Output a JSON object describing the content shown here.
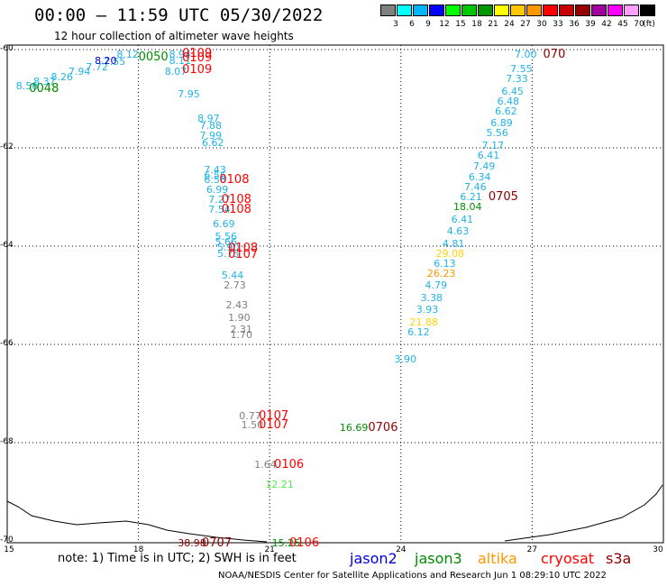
{
  "header": {
    "title": "00:00 – 11:59 UTC 05/30/2022",
    "subtitle": "12 hour collection of altimeter wave heights"
  },
  "legend": {
    "unit": "(ft)",
    "bins": [
      {
        "label": "3",
        "color": "#808080"
      },
      {
        "label": "6",
        "color": "#00ffff"
      },
      {
        "label": "9",
        "color": "#00b4ff"
      },
      {
        "label": "12",
        "color": "#0000ff"
      },
      {
        "label": "15",
        "color": "#00ff00"
      },
      {
        "label": "18",
        "color": "#00c800"
      },
      {
        "label": "21",
        "color": "#009600"
      },
      {
        "label": "24",
        "color": "#ffff00"
      },
      {
        "label": "27",
        "color": "#ffc800"
      },
      {
        "label": "30",
        "color": "#ff9600"
      },
      {
        "label": "33",
        "color": "#ff0000"
      },
      {
        "label": "36",
        "color": "#c80000"
      },
      {
        "label": "39",
        "color": "#960000"
      },
      {
        "label": "42",
        "color": "#a000a0"
      },
      {
        "label": "45",
        "color": "#ff00ff"
      },
      {
        "label": "70",
        "color": "#ffa0ff"
      },
      {
        "label": "",
        "color": "#000000"
      }
    ]
  },
  "axes": {
    "latitudes": [
      {
        "label": "-60",
        "value": -60
      },
      {
        "label": "-62",
        "value": -62
      },
      {
        "label": "-64",
        "value": -64
      },
      {
        "label": "-66",
        "value": -66
      },
      {
        "label": "-68",
        "value": -68
      },
      {
        "label": "-70",
        "value": -70
      }
    ],
    "longitudes": [
      {
        "label": "15",
        "value": 15
      },
      {
        "label": "18",
        "value": 18
      },
      {
        "label": "21",
        "value": 21
      },
      {
        "label": "24",
        "value": 24
      },
      {
        "label": "27",
        "value": 27
      },
      {
        "label": "30",
        "value": 30
      }
    ]
  },
  "colors": {
    "gray": "#808080",
    "cyan": "#1eb4e6",
    "green": "#008c00",
    "lightgreen": "#50e650",
    "yellow": "#ffd200",
    "red": "#ff0000",
    "darkred": "#8c0000",
    "blue": "#0000dc",
    "orange": "#ff9600"
  },
  "wave_heights": [
    {
      "text": "8.56",
      "lon": 15.2,
      "lat": -60.65,
      "color": "cyan"
    },
    {
      "text": "8.37",
      "lon": 15.6,
      "lat": -60.55,
      "color": "cyan"
    },
    {
      "text": "8.26",
      "lon": 16.0,
      "lat": -60.45,
      "color": "cyan"
    },
    {
      "text": "7.94",
      "lon": 16.4,
      "lat": -60.35,
      "color": "cyan"
    },
    {
      "text": "7.72",
      "lon": 16.8,
      "lat": -60.25,
      "color": "cyan"
    },
    {
      "text": "7.55",
      "lon": 17.2,
      "lat": -60.15,
      "color": "cyan"
    },
    {
      "text": "8.20",
      "lon": 17.0,
      "lat": -60.12,
      "color": "blue"
    },
    {
      "text": "8.12",
      "lon": 17.5,
      "lat": -60.0,
      "color": "cyan"
    },
    {
      "text": "8.94",
      "lon": 18.7,
      "lat": -60.0,
      "color": "cyan"
    },
    {
      "text": "8.11",
      "lon": 18.7,
      "lat": -60.12,
      "color": "cyan"
    },
    {
      "text": "8.07",
      "lon": 18.6,
      "lat": -60.35,
      "color": "cyan"
    },
    {
      "text": "7.95",
      "lon": 18.9,
      "lat": -60.8,
      "color": "cyan"
    },
    {
      "text": "8.97",
      "lon": 19.35,
      "lat": -61.3,
      "color": "cyan"
    },
    {
      "text": "7.88",
      "lon": 19.4,
      "lat": -61.45,
      "color": "cyan"
    },
    {
      "text": "7.99",
      "lon": 19.4,
      "lat": -61.65,
      "color": "cyan"
    },
    {
      "text": "6.62",
      "lon": 19.45,
      "lat": -61.8,
      "color": "cyan"
    },
    {
      "text": "7.43",
      "lon": 19.5,
      "lat": -62.35,
      "color": "cyan"
    },
    {
      "text": "6.56",
      "lon": 19.5,
      "lat": -62.45,
      "color": "cyan"
    },
    {
      "text": "6.58",
      "lon": 19.5,
      "lat": -62.55,
      "color": "cyan"
    },
    {
      "text": "6.99",
      "lon": 19.55,
      "lat": -62.75,
      "color": "cyan"
    },
    {
      "text": "7.27",
      "lon": 19.6,
      "lat": -62.95,
      "color": "cyan"
    },
    {
      "text": "7.54",
      "lon": 19.6,
      "lat": -63.15,
      "color": "cyan"
    },
    {
      "text": "6.69",
      "lon": 19.7,
      "lat": -63.45,
      "color": "cyan"
    },
    {
      "text": "5.56",
      "lon": 19.75,
      "lat": -63.7,
      "color": "cyan"
    },
    {
      "text": "5.66",
      "lon": 19.75,
      "lat": -63.82,
      "color": "cyan"
    },
    {
      "text": "5.90",
      "lon": 19.8,
      "lat": -63.92,
      "color": "cyan"
    },
    {
      "text": "5.75",
      "lon": 19.8,
      "lat": -64.05,
      "color": "cyan"
    },
    {
      "text": "5.44",
      "lon": 19.9,
      "lat": -64.5,
      "color": "cyan"
    },
    {
      "text": "2.73",
      "lon": 19.95,
      "lat": -64.7,
      "color": "gray"
    },
    {
      "text": "2.43",
      "lon": 20.0,
      "lat": -65.1,
      "color": "gray"
    },
    {
      "text": "1.90",
      "lon": 20.05,
      "lat": -65.35,
      "color": "gray"
    },
    {
      "text": "2.31",
      "lon": 20.1,
      "lat": -65.6,
      "color": "gray"
    },
    {
      "text": "1.70",
      "lon": 20.1,
      "lat": -65.7,
      "color": "gray"
    },
    {
      "text": "0.77",
      "lon": 20.3,
      "lat": -67.35,
      "color": "gray"
    },
    {
      "text": "1.50",
      "lon": 20.35,
      "lat": -67.55,
      "color": "gray"
    },
    {
      "text": "1.64",
      "lon": 20.65,
      "lat": -68.35,
      "color": "gray"
    },
    {
      "text": "12.21",
      "lon": 20.9,
      "lat": -68.75,
      "color": "lightgreen"
    },
    {
      "text": "15.25",
      "lon": 21.05,
      "lat": -69.95,
      "color": "green"
    },
    {
      "text": "38.98",
      "lon": 18.9,
      "lat": -69.95,
      "color": "darkred"
    },
    {
      "text": "16.69",
      "lon": 22.6,
      "lat": -67.6,
      "color": "green"
    },
    {
      "text": "3.90",
      "lon": 23.85,
      "lat": -66.2,
      "color": "cyan"
    },
    {
      "text": "6.12",
      "lon": 24.15,
      "lat": -65.65,
      "color": "cyan"
    },
    {
      "text": "21.88",
      "lon": 24.2,
      "lat": -65.45,
      "color": "yellow"
    },
    {
      "text": "3.93",
      "lon": 24.35,
      "lat": -65.2,
      "color": "cyan"
    },
    {
      "text": "3.38",
      "lon": 24.45,
      "lat": -64.95,
      "color": "cyan"
    },
    {
      "text": "4.79",
      "lon": 24.55,
      "lat": -64.7,
      "color": "cyan"
    },
    {
      "text": "26.23",
      "lon": 24.6,
      "lat": -64.45,
      "color": "orange"
    },
    {
      "text": "6.13",
      "lon": 24.75,
      "lat": -64.25,
      "color": "cyan"
    },
    {
      "text": "29.08",
      "lon": 24.8,
      "lat": -64.05,
      "color": "yellow"
    },
    {
      "text": "4.81",
      "lon": 24.95,
      "lat": -63.85,
      "color": "cyan"
    },
    {
      "text": "4.63",
      "lon": 25.05,
      "lat": -63.6,
      "color": "cyan"
    },
    {
      "text": "6.41",
      "lon": 25.15,
      "lat": -63.35,
      "color": "cyan"
    },
    {
      "text": "18.04",
      "lon": 25.2,
      "lat": -63.1,
      "color": "green"
    },
    {
      "text": "6.21",
      "lon": 25.35,
      "lat": -62.9,
      "color": "cyan"
    },
    {
      "text": "7.46",
      "lon": 25.45,
      "lat": -62.7,
      "color": "cyan"
    },
    {
      "text": "6.34",
      "lon": 25.55,
      "lat": -62.5,
      "color": "cyan"
    },
    {
      "text": "7.49",
      "lon": 25.65,
      "lat": -62.27,
      "color": "cyan"
    },
    {
      "text": "6.41",
      "lon": 25.75,
      "lat": -62.05,
      "color": "cyan"
    },
    {
      "text": "7.17",
      "lon": 25.85,
      "lat": -61.85,
      "color": "cyan"
    },
    {
      "text": "5.56",
      "lon": 25.95,
      "lat": -61.6,
      "color": "cyan"
    },
    {
      "text": "6.89",
      "lon": 26.05,
      "lat": -61.4,
      "color": "cyan"
    },
    {
      "text": "6.62",
      "lon": 26.15,
      "lat": -61.15,
      "color": "cyan"
    },
    {
      "text": "6.48",
      "lon": 26.2,
      "lat": -60.95,
      "color": "cyan"
    },
    {
      "text": "6.45",
      "lon": 26.3,
      "lat": -60.75,
      "color": "cyan"
    },
    {
      "text": "7.33",
      "lon": 26.4,
      "lat": -60.5,
      "color": "cyan"
    },
    {
      "text": "7.55",
      "lon": 26.5,
      "lat": -60.3,
      "color": "cyan"
    },
    {
      "text": "7.00",
      "lon": 26.6,
      "lat": -60.0,
      "color": "cyan"
    }
  ],
  "pass_labels": [
    {
      "text": "0048",
      "lon": 15.5,
      "lat": -60.7,
      "color": "green"
    },
    {
      "text": "0050",
      "lon": 18.0,
      "lat": -60.05,
      "color": "green"
    },
    {
      "text": "0109",
      "lon": 19.0,
      "lat": -59.98,
      "color": "red"
    },
    {
      "text": "0109",
      "lon": 19.0,
      "lat": -60.08,
      "color": "red"
    },
    {
      "text": "0109",
      "lon": 19.0,
      "lat": -60.32,
      "color": "red"
    },
    {
      "text": "0108",
      "lon": 19.85,
      "lat": -62.55,
      "color": "red"
    },
    {
      "text": "0108",
      "lon": 19.9,
      "lat": -62.95,
      "color": "red"
    },
    {
      "text": "0108",
      "lon": 19.9,
      "lat": -63.15,
      "color": "red"
    },
    {
      "text": "0108",
      "lon": 20.05,
      "lat": -63.95,
      "color": "red"
    },
    {
      "text": "0107",
      "lon": 20.05,
      "lat": -64.08,
      "color": "red"
    },
    {
      "text": "0107",
      "lon": 20.75,
      "lat": -67.35,
      "color": "red"
    },
    {
      "text": "0107",
      "lon": 20.75,
      "lat": -67.55,
      "color": "red"
    },
    {
      "text": "0106",
      "lon": 21.1,
      "lat": -68.35,
      "color": "red"
    },
    {
      "text": "0106",
      "lon": 21.45,
      "lat": -69.95,
      "color": "red"
    },
    {
      "text": "0707",
      "lon": 19.45,
      "lat": -69.95,
      "color": "darkred"
    },
    {
      "text": "0706",
      "lon": 23.25,
      "lat": -67.6,
      "color": "darkred"
    },
    {
      "text": "0705",
      "lon": 26.0,
      "lat": -62.9,
      "color": "darkred"
    },
    {
      "text": "070",
      "lon": 27.25,
      "lat": -60.0,
      "color": "darkred"
    }
  ],
  "footer": {
    "note": "note: 1) Time is in UTC; 2) SWH is in feet",
    "satellites": [
      {
        "name": "jason2",
        "color": "#0000dc"
      },
      {
        "name": "jason3",
        "color": "#008c00"
      },
      {
        "name": "altika",
        "color": "#ff9600"
      },
      {
        "name": "cryosat",
        "color": "#ff0000"
      },
      {
        "name": "s3a",
        "color": "#8c0000"
      }
    ],
    "credit": "NOAA/NESDIS Center for Satellite Applications and Research   Jun  1 08:29:10 UTC 2022"
  }
}
